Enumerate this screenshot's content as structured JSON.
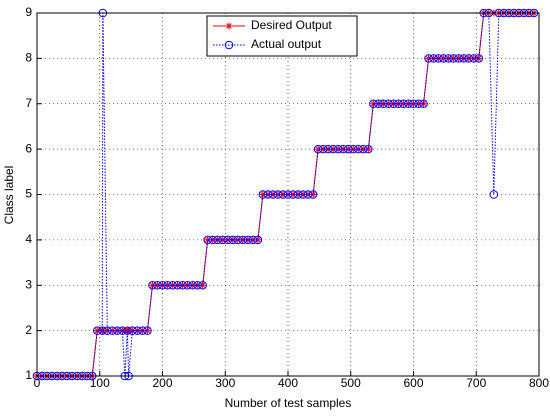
{
  "chart_data": {
    "type": "line",
    "x_label": "Number of test samples",
    "y_label": "Class label",
    "x": [
      0,
      8,
      16,
      24,
      32,
      40,
      48,
      56,
      64,
      72,
      80,
      88,
      96,
      104,
      105,
      112,
      120,
      128,
      136,
      140,
      144,
      146,
      152,
      160,
      168,
      176,
      184,
      192,
      200,
      208,
      216,
      224,
      232,
      240,
      248,
      256,
      264,
      272,
      280,
      288,
      296,
      304,
      312,
      320,
      328,
      336,
      344,
      352,
      360,
      368,
      376,
      384,
      392,
      400,
      408,
      416,
      424,
      432,
      440,
      448,
      456,
      464,
      472,
      480,
      488,
      496,
      504,
      512,
      520,
      528,
      536,
      544,
      552,
      560,
      568,
      576,
      584,
      592,
      600,
      608,
      616,
      624,
      632,
      640,
      648,
      656,
      664,
      672,
      680,
      688,
      696,
      704,
      712,
      720,
      728,
      736,
      744,
      752,
      760,
      768,
      776,
      784,
      792
    ],
    "series": [
      {
        "name": "Desired Output",
        "color": "#ff0000",
        "marker": "star",
        "line": "solid",
        "values": [
          1,
          1,
          1,
          1,
          1,
          1,
          1,
          1,
          1,
          1,
          1,
          1,
          2,
          2,
          2,
          2,
          2,
          2,
          2,
          2,
          2,
          2,
          2,
          2,
          2,
          2,
          3,
          3,
          3,
          3,
          3,
          3,
          3,
          3,
          3,
          3,
          3,
          4,
          4,
          4,
          4,
          4,
          4,
          4,
          4,
          4,
          4,
          4,
          5,
          5,
          5,
          5,
          5,
          5,
          5,
          5,
          5,
          5,
          5,
          6,
          6,
          6,
          6,
          6,
          6,
          6,
          6,
          6,
          6,
          6,
          7,
          7,
          7,
          7,
          7,
          7,
          7,
          7,
          7,
          7,
          7,
          8,
          8,
          8,
          8,
          8,
          8,
          8,
          8,
          8,
          8,
          8,
          9,
          9,
          9,
          9,
          9,
          9,
          9,
          9,
          9,
          9,
          9
        ]
      },
      {
        "name": "Actual output",
        "color": "#0000ff",
        "marker": "circle",
        "line": "dotted",
        "values": [
          1,
          1,
          1,
          1,
          1,
          1,
          1,
          1,
          1,
          1,
          1,
          1,
          2,
          2,
          9,
          2,
          2,
          2,
          2,
          1,
          2,
          1,
          2,
          2,
          2,
          2,
          3,
          3,
          3,
          3,
          3,
          3,
          3,
          3,
          3,
          3,
          3,
          4,
          4,
          4,
          4,
          4,
          4,
          4,
          4,
          4,
          4,
          4,
          5,
          5,
          5,
          5,
          5,
          5,
          5,
          5,
          5,
          5,
          5,
          6,
          6,
          6,
          6,
          6,
          6,
          6,
          6,
          6,
          6,
          6,
          7,
          7,
          7,
          7,
          7,
          7,
          7,
          7,
          7,
          7,
          7,
          8,
          8,
          8,
          8,
          8,
          8,
          8,
          8,
          8,
          8,
          8,
          9,
          9,
          5,
          9,
          9,
          9,
          9,
          9,
          9,
          9,
          9
        ]
      }
    ],
    "xlim": [
      0,
      800
    ],
    "xticks": [
      0,
      100,
      200,
      300,
      400,
      500,
      600,
      700,
      800
    ],
    "ylim": [
      1,
      9
    ],
    "yticks": [
      1,
      2,
      3,
      4,
      5,
      6,
      7,
      8,
      9
    ],
    "grid": true,
    "legend": "top-center"
  }
}
